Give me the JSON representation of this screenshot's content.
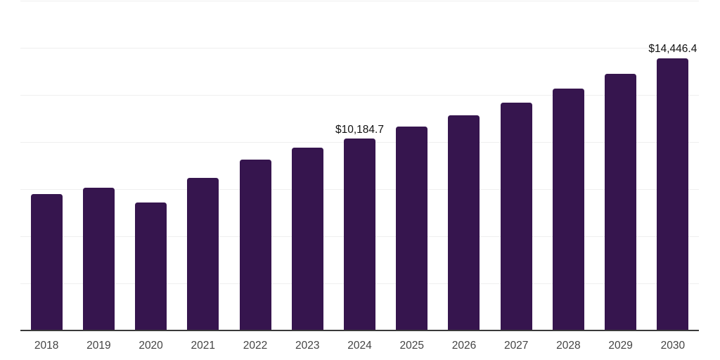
{
  "chart_data": {
    "type": "bar",
    "title": "",
    "xlabel": "",
    "ylabel": "",
    "categories": [
      "2018",
      "2019",
      "2020",
      "2021",
      "2022",
      "2023",
      "2024",
      "2025",
      "2026",
      "2027",
      "2028",
      "2029",
      "2030"
    ],
    "values": [
      7240,
      7580,
      6810,
      8100,
      9065,
      9700,
      10184.7,
      10820,
      11420,
      12090,
      12835,
      13620,
      14446.4
    ],
    "ylim": [
      0,
      17500
    ],
    "gridline_interval": 2500,
    "grid": true,
    "legend": false,
    "y_axis_labels_visible": false,
    "annotations": [
      {
        "category": "2024",
        "text": "$10,184.7"
      },
      {
        "category": "2030",
        "text": "$14,446.4"
      }
    ],
    "colors": {
      "bar": "#36154E",
      "axis_line": "#3a3a3a",
      "gridline": "#efefef",
      "category_label": "#444444",
      "data_label": "#111111",
      "background": "#ffffff"
    }
  }
}
